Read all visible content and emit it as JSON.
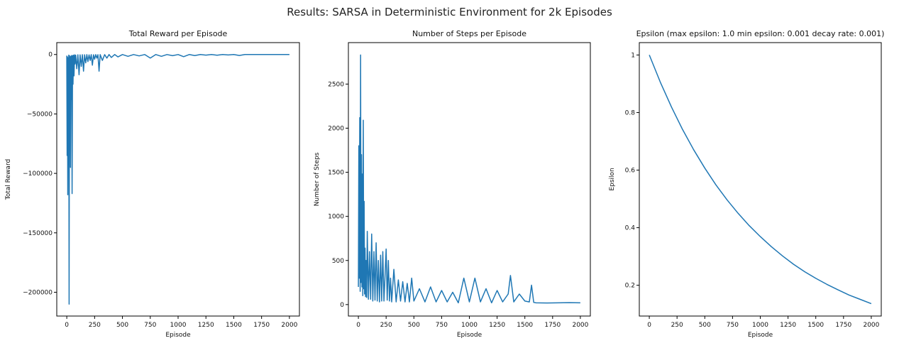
{
  "suptitle": "Results: SARSA in Deterministic Environment for 2k Episodes",
  "chart_data": [
    {
      "type": "line",
      "title": "Total Reward per Episode",
      "xlabel": "Episode",
      "ylabel": "Total Reward",
      "xlim": [
        -90,
        2090
      ],
      "ylim": [
        -220000,
        10000
      ],
      "xticks": [
        0,
        250,
        500,
        750,
        1000,
        1250,
        1500,
        1750,
        2000
      ],
      "yticks": [
        0,
        -50000,
        -100000,
        -150000,
        -200000
      ],
      "color": "#1f77b4",
      "series": [
        {
          "x": [
            0,
            3,
            6,
            9,
            12,
            15,
            18,
            21,
            24,
            27,
            30,
            33,
            36,
            40,
            44,
            48,
            52,
            56,
            60,
            65,
            70,
            75,
            80,
            90,
            100,
            110,
            120,
            130,
            140,
            150,
            160,
            170,
            180,
            190,
            200,
            210,
            220,
            230,
            240,
            250,
            260,
            270,
            280,
            290,
            300,
            320,
            340,
            360,
            380,
            400,
            430,
            460,
            500,
            550,
            600,
            650,
            700,
            750,
            800,
            850,
            900,
            950,
            1000,
            1050,
            1100,
            1150,
            1200,
            1250,
            1300,
            1350,
            1400,
            1450,
            1500,
            1550,
            1600,
            1700,
            1800,
            1900,
            2000
          ],
          "values": [
            -1000,
            -85000,
            -2000,
            -118000,
            -3000,
            -36000,
            -500,
            -210000,
            -1000,
            -60000,
            -2000,
            -95000,
            -1500,
            -38000,
            -800,
            -117000,
            -1000,
            -25000,
            -600,
            -18000,
            -300,
            -8000,
            -500,
            -12000,
            -200,
            -17000,
            -300,
            -10000,
            -150,
            -14000,
            -200,
            -7000,
            -100,
            -6000,
            -300,
            -5000,
            -100,
            -9000,
            -200,
            -4000,
            -100,
            -3000,
            -150,
            -14000,
            -100,
            -5000,
            -80,
            -3000,
            -60,
            -2500,
            -50,
            -2000,
            -40,
            -1500,
            -30,
            -1200,
            -40,
            -3000,
            -20,
            -1500,
            -40,
            -1000,
            -30,
            -1800,
            -20,
            -900,
            -30,
            -500,
            -20,
            -600,
            -20,
            -400,
            -15,
            -800,
            -10,
            -20,
            -15,
            -10,
            -12
          ]
        }
      ]
    },
    {
      "type": "line",
      "title": "Number of Steps per Episode",
      "xlabel": "Episode",
      "ylabel": "Number of Steps",
      "xlim": [
        -90,
        2090
      ],
      "ylim": [
        -130,
        2970
      ],
      "xticks": [
        0,
        250,
        500,
        750,
        1000,
        1250,
        1500,
        1750,
        2000
      ],
      "yticks": [
        0,
        500,
        1000,
        1500,
        2000,
        2500
      ],
      "color": "#1f77b4",
      "series": [
        {
          "x": [
            0,
            4,
            8,
            12,
            16,
            20,
            24,
            28,
            32,
            36,
            40,
            44,
            48,
            52,
            56,
            60,
            65,
            70,
            75,
            80,
            90,
            100,
            110,
            120,
            130,
            140,
            150,
            160,
            170,
            180,
            190,
            200,
            210,
            220,
            230,
            240,
            250,
            260,
            270,
            280,
            290,
            300,
            320,
            340,
            360,
            380,
            400,
            420,
            440,
            460,
            480,
            500,
            550,
            600,
            650,
            700,
            750,
            800,
            850,
            900,
            950,
            1000,
            1050,
            1100,
            1150,
            1200,
            1250,
            1300,
            1350,
            1370,
            1400,
            1450,
            1500,
            1540,
            1560,
            1580,
            1600,
            1700,
            1800,
            1900,
            2000
          ],
          "values": [
            200,
            1800,
            300,
            2120,
            150,
            2830,
            250,
            1700,
            200,
            1480,
            100,
            2090,
            180,
            1170,
            120,
            640,
            90,
            500,
            80,
            830,
            60,
            600,
            60,
            800,
            40,
            600,
            50,
            700,
            40,
            500,
            30,
            560,
            40,
            600,
            40,
            320,
            630,
            50,
            500,
            40,
            300,
            30,
            400,
            30,
            280,
            40,
            260,
            30,
            240,
            30,
            300,
            40,
            180,
            30,
            200,
            30,
            160,
            30,
            140,
            20,
            300,
            30,
            300,
            30,
            180,
            20,
            160,
            30,
            120,
            330,
            30,
            120,
            40,
            30,
            220,
            25,
            20,
            18,
            20,
            22,
            20
          ]
        }
      ]
    },
    {
      "type": "line",
      "title": "Epsilon (max epsilon: 1.0 min epsilon: 0.001 decay rate: 0.001)",
      "xlabel": "Episode",
      "ylabel": "Epsilon",
      "xlim": [
        -90,
        2090
      ],
      "ylim": [
        0.093,
        1.043
      ],
      "xticks": [
        0,
        250,
        500,
        750,
        1000,
        1250,
        1500,
        1750,
        2000
      ],
      "yticks": [
        0.2,
        0.4,
        0.6,
        0.8,
        1.0
      ],
      "color": "#1f77b4",
      "series": [
        {
          "x": [
            0,
            100,
            200,
            300,
            400,
            500,
            600,
            700,
            800,
            900,
            1000,
            1100,
            1200,
            1300,
            1400,
            1500,
            1600,
            1700,
            1800,
            1900,
            2000
          ],
          "values": [
            1.0,
            0.905,
            0.819,
            0.741,
            0.671,
            0.607,
            0.549,
            0.497,
            0.45,
            0.407,
            0.369,
            0.334,
            0.302,
            0.273,
            0.247,
            0.224,
            0.203,
            0.184,
            0.166,
            0.151,
            0.136
          ]
        }
      ]
    }
  ]
}
